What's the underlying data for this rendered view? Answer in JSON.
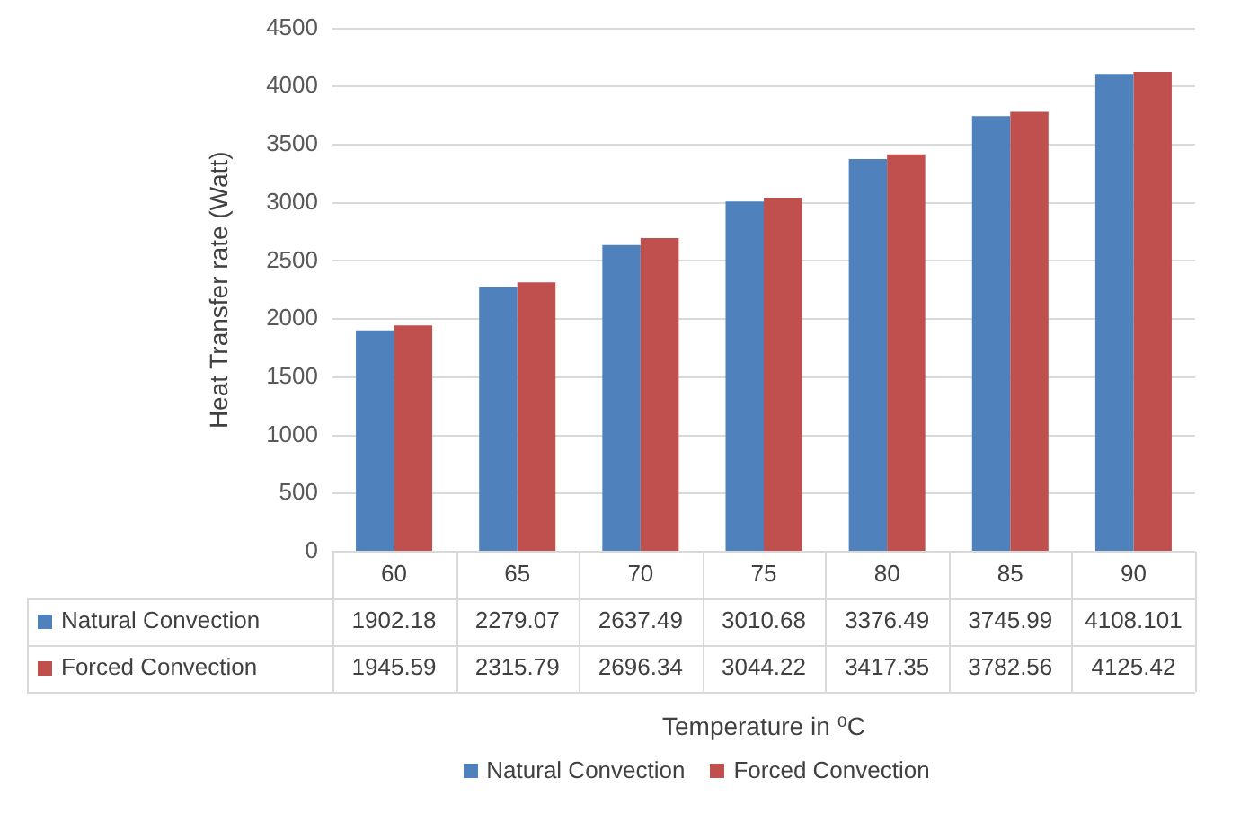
{
  "chart_data": {
    "type": "bar",
    "xlabel": "Temperature in ⁰C",
    "ylabel": "Heat Transfer rate (Watt)",
    "categories": [
      "60",
      "65",
      "70",
      "75",
      "80",
      "85",
      "90"
    ],
    "series": [
      {
        "name": "Natural Convection",
        "color": "#4f81bd",
        "values": [
          1902.18,
          2279.07,
          2637.49,
          3010.68,
          3376.49,
          3745.99,
          4108.101
        ]
      },
      {
        "name": "Forced Convection",
        "color": "#c0504d",
        "values": [
          1945.59,
          2315.79,
          2696.34,
          3044.22,
          3417.35,
          3782.56,
          4125.42
        ]
      }
    ],
    "ylim": [
      0,
      4500
    ],
    "yticks": [
      0,
      500,
      1000,
      1500,
      2000,
      2500,
      3000,
      3500,
      4000,
      4500
    ],
    "grid": "y",
    "legend": "bottom",
    "data_labels": true
  }
}
